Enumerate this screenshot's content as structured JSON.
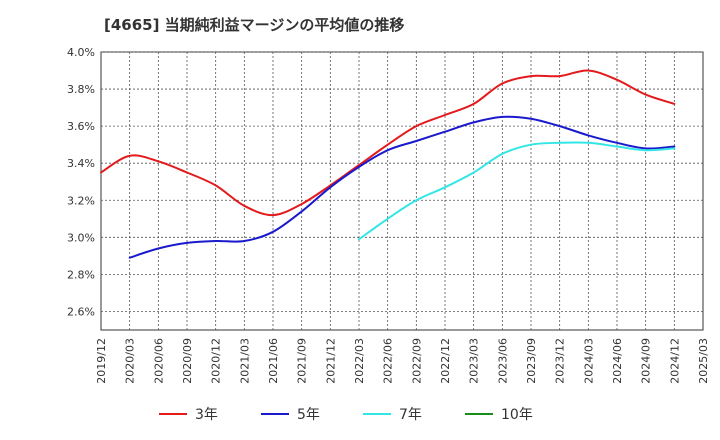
{
  "chart_data": {
    "type": "line",
    "title": "[4665]  当期純利益マージンの平均値の推移",
    "xlabel": "",
    "ylabel": "",
    "ylim": [
      2.5,
      4.0
    ],
    "yticks": [
      {
        "value": 4.0,
        "label": "4.0%"
      },
      {
        "value": 3.8,
        "label": "3.8%"
      },
      {
        "value": 3.6,
        "label": "3.6%"
      },
      {
        "value": 3.4,
        "label": "3.4%"
      },
      {
        "value": 3.2,
        "label": "3.2%"
      },
      {
        "value": 3.0,
        "label": "3.0%"
      },
      {
        "value": 2.8,
        "label": "2.8%"
      },
      {
        "value": 2.6,
        "label": "2.6%"
      }
    ],
    "xticks": [
      "2019/12",
      "2020/03",
      "2020/06",
      "2020/09",
      "2020/12",
      "2021/03",
      "2021/06",
      "2021/09",
      "2021/12",
      "2022/03",
      "2022/06",
      "2022/09",
      "2022/12",
      "2023/03",
      "2023/06",
      "2023/09",
      "2023/12",
      "2024/03",
      "2024/06",
      "2024/09",
      "2024/12",
      "2025/03"
    ],
    "grid": true,
    "legend_position": "bottom",
    "series": [
      {
        "name": "3年",
        "color": "#e31a1c",
        "x": [
          "2019/12",
          "2020/03",
          "2020/06",
          "2020/09",
          "2020/12",
          "2021/03",
          "2021/06",
          "2021/09",
          "2021/12",
          "2022/03",
          "2022/06",
          "2022/09",
          "2022/12",
          "2023/03",
          "2023/06",
          "2023/09",
          "2023/12",
          "2024/03",
          "2024/06",
          "2024/09",
          "2024/12"
        ],
        "values": [
          3.35,
          3.44,
          3.41,
          3.35,
          3.28,
          3.17,
          3.12,
          3.18,
          3.28,
          3.39,
          3.5,
          3.6,
          3.66,
          3.72,
          3.83,
          3.87,
          3.87,
          3.9,
          3.85,
          3.77,
          3.72
        ]
      },
      {
        "name": "5年",
        "color": "#1a1acd",
        "x": [
          "2020/03",
          "2020/06",
          "2020/09",
          "2020/12",
          "2021/03",
          "2021/06",
          "2021/09",
          "2021/12",
          "2022/03",
          "2022/06",
          "2022/09",
          "2022/12",
          "2023/03",
          "2023/06",
          "2023/09",
          "2023/12",
          "2024/03",
          "2024/06",
          "2024/09",
          "2024/12"
        ],
        "values": [
          2.89,
          2.94,
          2.97,
          2.98,
          2.98,
          3.03,
          3.14,
          3.27,
          3.38,
          3.47,
          3.52,
          3.57,
          3.62,
          3.65,
          3.64,
          3.6,
          3.55,
          3.51,
          3.48,
          3.49
        ]
      },
      {
        "name": "7年",
        "color": "#33e6e6",
        "x": [
          "2022/03",
          "2022/06",
          "2022/09",
          "2022/12",
          "2023/03",
          "2023/06",
          "2023/09",
          "2023/12",
          "2024/03",
          "2024/06",
          "2024/09",
          "2024/12"
        ],
        "values": [
          2.99,
          3.1,
          3.2,
          3.27,
          3.35,
          3.45,
          3.5,
          3.51,
          3.51,
          3.49,
          3.47,
          3.48
        ]
      },
      {
        "name": "10年",
        "color": "#1a8c1a",
        "x": [],
        "values": []
      }
    ]
  }
}
